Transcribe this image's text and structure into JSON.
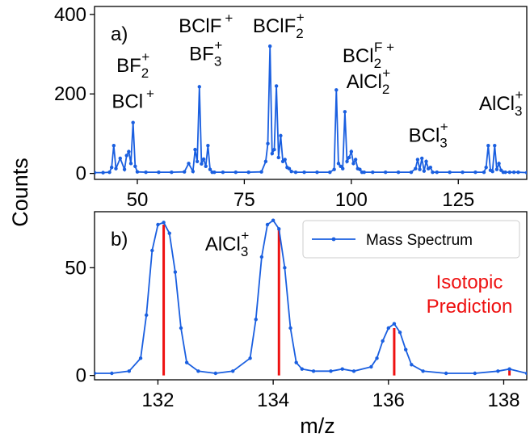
{
  "figure": {
    "ylabel": "Counts",
    "xlabel": "m/z"
  },
  "chart_data": [
    {
      "panel": "a)",
      "type": "line",
      "xlim": [
        40,
        141
      ],
      "ylim": [
        -15,
        420
      ],
      "xticks": [
        50,
        75,
        100,
        125
      ],
      "yticks": [
        0,
        200,
        400
      ],
      "grid": false,
      "series": [
        {
          "color": "#1a5fe0",
          "x": [
            40,
            42,
            43.5,
            44,
            44.5,
            45,
            46,
            47,
            47.5,
            48,
            48.5,
            49,
            49.5,
            50,
            52,
            55,
            58,
            61,
            62,
            63,
            63.5,
            64,
            64.5,
            65,
            65.5,
            66,
            66.5,
            67,
            67.5,
            68,
            70,
            73,
            76,
            79,
            80,
            80.5,
            81,
            81.5,
            82,
            82.5,
            83,
            83.5,
            84,
            84.5,
            85,
            85.5,
            86,
            87,
            89,
            92,
            95,
            96,
            96.5,
            97,
            97.5,
            98,
            98.5,
            99,
            99.5,
            100,
            100.5,
            101,
            101.5,
            102,
            102.5,
            103,
            105,
            108,
            111,
            114,
            115,
            115.5,
            116,
            116.5,
            117,
            117.5,
            118,
            118.5,
            119,
            120,
            123,
            126,
            129,
            131,
            131.5,
            132,
            132.5,
            133,
            133.5,
            134,
            134.5,
            135,
            135.5,
            136,
            137,
            138,
            139,
            141
          ],
          "values": [
            2,
            2,
            3,
            15,
            70,
            12,
            38,
            10,
            45,
            55,
            25,
            128,
            18,
            4,
            3,
            3,
            3,
            4,
            25,
            5,
            60,
            30,
            218,
            24,
            36,
            18,
            70,
            10,
            3,
            3,
            3,
            3,
            3,
            4,
            30,
            75,
            320,
            50,
            60,
            220,
            40,
            95,
            30,
            35,
            15,
            12,
            5,
            3,
            3,
            3,
            3,
            10,
            210,
            25,
            18,
            12,
            155,
            30,
            40,
            55,
            25,
            35,
            12,
            10,
            3,
            3,
            3,
            3,
            3,
            3,
            12,
            35,
            10,
            38,
            6,
            30,
            12,
            15,
            3,
            3,
            3,
            3,
            3,
            3,
            15,
            70,
            8,
            5,
            70,
            10,
            25,
            8,
            3,
            3,
            3,
            3,
            3,
            2
          ]
        }
      ],
      "annotations": [
        {
          "text": "BF",
          "sub": "2",
          "sup": "+",
          "mz": 49,
          "counts": 255
        },
        {
          "text": "BCl",
          "sub": "",
          "sup": "+",
          "mz": 49,
          "counts": 165
        },
        {
          "text": "BClF",
          "sub": "",
          "sup": "+",
          "mz": 66,
          "counts": 355
        },
        {
          "text": "BF",
          "sub": "3",
          "sup": "+",
          "mz": 66,
          "counts": 285
        },
        {
          "text": "BClF",
          "sub": "2",
          "sup": "+",
          "mz": 83,
          "counts": 355
        },
        {
          "text": "BCl",
          "sub": "2",
          "sup": "F +",
          "mz": 104,
          "counts": 280
        },
        {
          "text": "AlCl",
          "sub": "2",
          "sup": "+",
          "mz": 104,
          "counts": 215
        },
        {
          "text": "BCl",
          "sub": "3",
          "sup": "+",
          "mz": 118,
          "counts": 80
        },
        {
          "text": "AlCl",
          "sub": "3",
          "sup": "+",
          "mz": 135,
          "counts": 160
        }
      ]
    },
    {
      "panel": "b)",
      "type": "line",
      "xlim": [
        130.9,
        138.4
      ],
      "ylim": [
        -2,
        76
      ],
      "xticks": [
        132,
        134,
        136,
        138
      ],
      "yticks": [
        0,
        50
      ],
      "grid": false,
      "legend": {
        "position": "top-right",
        "entries": [
          "Mass Spectrum"
        ]
      },
      "series": [
        {
          "name": "Mass Spectrum",
          "color": "#1a5fe0",
          "x": [
            130.9,
            131.2,
            131.5,
            131.7,
            131.8,
            131.9,
            132.0,
            132.1,
            132.2,
            132.3,
            132.4,
            132.5,
            132.7,
            133.0,
            133.3,
            133.6,
            133.7,
            133.8,
            133.9,
            134.0,
            134.1,
            134.2,
            134.3,
            134.4,
            134.5,
            134.7,
            135.0,
            135.2,
            135.4,
            135.7,
            135.8,
            135.9,
            136.0,
            136.1,
            136.2,
            136.3,
            136.4,
            136.6,
            137.0,
            137.5,
            137.9,
            138.1,
            138.4
          ],
          "values": [
            1,
            1,
            2,
            8,
            28,
            58,
            70,
            71,
            66,
            48,
            22,
            6,
            2,
            1,
            2,
            8,
            26,
            55,
            70,
            72,
            68,
            50,
            22,
            6,
            3,
            2,
            2,
            3,
            2,
            4,
            8,
            16,
            22,
            24,
            20,
            12,
            5,
            2,
            1,
            1,
            2,
            3,
            1
          ]
        }
      ],
      "isotopic_prediction": {
        "label_line1": "Isotopic",
        "label_line2": "Prediction",
        "color": "#ee1111",
        "x": [
          132.1,
          134.1,
          136.1,
          138.1
        ],
        "values": [
          70,
          68,
          22,
          3
        ]
      },
      "annotations": [
        {
          "text": "AlCl",
          "sub": "3",
          "sup": "+",
          "mz": 133.2,
          "counts": 58
        }
      ]
    }
  ]
}
